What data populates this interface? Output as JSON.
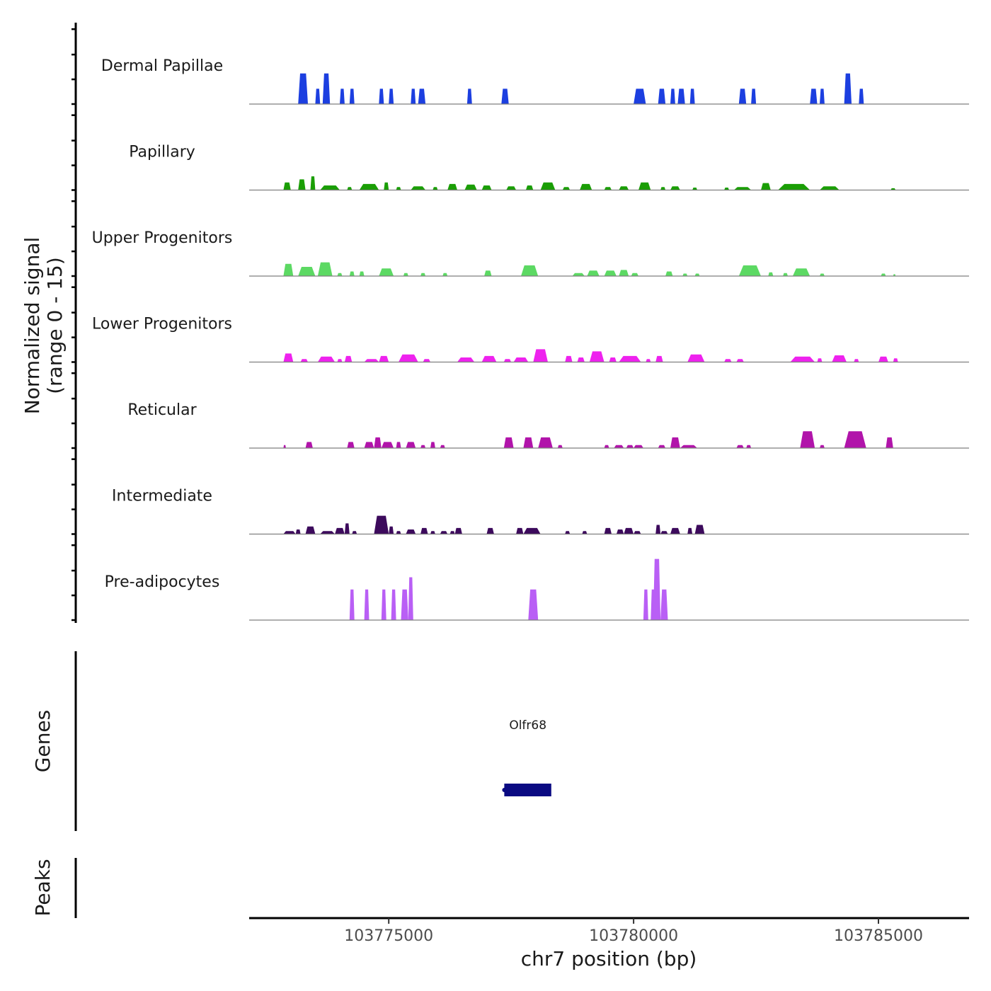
{
  "chart_data": {
    "type": "coverage",
    "y_axis_title_line1": "Normalized signal",
    "y_axis_title_line2": "(range 0 - 15)",
    "y_range": [
      0,
      15
    ],
    "x_axis_title": "chr7 position (bp)",
    "x_range": [
      103772150,
      103786850
    ],
    "x_ticks": [
      103775000,
      103780000,
      103785000
    ],
    "x_tick_labels": [
      "103775000",
      "103780000",
      "103785000"
    ],
    "tracks": [
      {
        "name": "Dermal Papillae",
        "color": "#1c3fe0",
        "peaks": [
          [
            103773150,
            103773350,
            10
          ],
          [
            103773500,
            103773600,
            5
          ],
          [
            103773650,
            103773800,
            10
          ],
          [
            103774000,
            103774100,
            5
          ],
          [
            103774200,
            103774300,
            5
          ],
          [
            103774800,
            103774900,
            5
          ],
          [
            103775000,
            103775100,
            5
          ],
          [
            103775450,
            103775550,
            5
          ],
          [
            103775600,
            103775750,
            5
          ],
          [
            103776600,
            103776700,
            5
          ],
          [
            103777300,
            103777450,
            5
          ],
          [
            103780000,
            103780250,
            5
          ],
          [
            103780500,
            103780650,
            5
          ],
          [
            103780750,
            103780850,
            5
          ],
          [
            103780900,
            103781050,
            5
          ],
          [
            103781150,
            103781250,
            5
          ],
          [
            103782150,
            103782300,
            5
          ],
          [
            103782400,
            103782500,
            5
          ],
          [
            103783600,
            103783750,
            5
          ],
          [
            103783800,
            103783900,
            5
          ],
          [
            103784300,
            103784450,
            10
          ],
          [
            103784600,
            103784700,
            5
          ]
        ]
      },
      {
        "name": "Papillary",
        "color": "#1a9e05",
        "peaks": [
          [
            103772850,
            103773000,
            2.5
          ],
          [
            103773150,
            103773300,
            3.5
          ],
          [
            103773400,
            103773500,
            4.5
          ],
          [
            103773600,
            103774000,
            1.5
          ],
          [
            103774150,
            103774250,
            1
          ],
          [
            103774400,
            103774800,
            2
          ],
          [
            103774900,
            103775000,
            2.5
          ],
          [
            103775150,
            103775250,
            1
          ],
          [
            103775450,
            103775750,
            1.2
          ],
          [
            103775900,
            103776000,
            1
          ],
          [
            103776200,
            103776400,
            2
          ],
          [
            103776550,
            103776800,
            1.8
          ],
          [
            103776900,
            103777100,
            1.5
          ],
          [
            103777400,
            103777600,
            1.2
          ],
          [
            103777800,
            103777950,
            1.5
          ],
          [
            103778100,
            103778400,
            2.5
          ],
          [
            103778550,
            103778700,
            1
          ],
          [
            103778900,
            103779150,
            2
          ],
          [
            103779400,
            103779550,
            1
          ],
          [
            103779700,
            103779900,
            1.2
          ],
          [
            103780100,
            103780350,
            2.5
          ],
          [
            103780550,
            103780650,
            1
          ],
          [
            103780750,
            103780950,
            1.2
          ],
          [
            103781200,
            103781300,
            0.8
          ],
          [
            103781850,
            103781950,
            0.8
          ],
          [
            103782050,
            103782400,
            1
          ],
          [
            103782600,
            103782800,
            2.3
          ],
          [
            103782950,
            103783600,
            2
          ],
          [
            103783800,
            103784200,
            1.2
          ],
          [
            103785250,
            103785350,
            0.6
          ]
        ]
      },
      {
        "name": "Upper Progenitors",
        "color": "#5cd963",
        "peaks": [
          [
            103772850,
            103773050,
            4
          ],
          [
            103773150,
            103773500,
            3
          ],
          [
            103773550,
            103773850,
            4.5
          ],
          [
            103773950,
            103774050,
            1
          ],
          [
            103774200,
            103774300,
            1.5
          ],
          [
            103774400,
            103774500,
            1.5
          ],
          [
            103774800,
            103775100,
            2.5
          ],
          [
            103775300,
            103775400,
            1
          ],
          [
            103775650,
            103775750,
            1
          ],
          [
            103776100,
            103776200,
            1
          ],
          [
            103776950,
            103777100,
            1.8
          ],
          [
            103777700,
            103778050,
            3.5
          ],
          [
            103778750,
            103779000,
            1
          ],
          [
            103779050,
            103779300,
            1.8
          ],
          [
            103779400,
            103779650,
            1.8
          ],
          [
            103779700,
            103779900,
            2
          ],
          [
            103779950,
            103780100,
            1
          ],
          [
            103780650,
            103780800,
            1.5
          ],
          [
            103781000,
            103781100,
            0.8
          ],
          [
            103781250,
            103781350,
            0.8
          ],
          [
            103782150,
            103782600,
            3.5
          ],
          [
            103782750,
            103782850,
            1.2
          ],
          [
            103783050,
            103783150,
            1
          ],
          [
            103783250,
            103783600,
            2.5
          ],
          [
            103783800,
            103783900,
            0.8
          ],
          [
            103785050,
            103785150,
            0.8
          ],
          [
            103785300,
            103785350,
            0.6
          ]
        ]
      },
      {
        "name": "Lower Progenitors",
        "color": "#ee22ee",
        "peaks": [
          [
            103772850,
            103773050,
            2.8
          ],
          [
            103773200,
            103773350,
            1
          ],
          [
            103773550,
            103773900,
            1.8
          ],
          [
            103773950,
            103774050,
            1
          ],
          [
            103774100,
            103774250,
            2
          ],
          [
            103774500,
            103774800,
            1
          ],
          [
            103774800,
            103775000,
            2
          ],
          [
            103775200,
            103775600,
            2.5
          ],
          [
            103775700,
            103775850,
            1
          ],
          [
            103776400,
            103776750,
            1.5
          ],
          [
            103776900,
            103777200,
            2
          ],
          [
            103777350,
            103777500,
            1
          ],
          [
            103777550,
            103777850,
            1.5
          ],
          [
            103777950,
            103778250,
            4.2
          ],
          [
            103778600,
            103778750,
            2
          ],
          [
            103778850,
            103779000,
            1.5
          ],
          [
            103779100,
            103779400,
            3.5
          ],
          [
            103779500,
            103779650,
            1.5
          ],
          [
            103779700,
            103780150,
            2
          ],
          [
            103780250,
            103780350,
            1
          ],
          [
            103780450,
            103780600,
            2
          ],
          [
            103781100,
            103781450,
            2.5
          ],
          [
            103781850,
            103782000,
            1
          ],
          [
            103782100,
            103782250,
            1
          ],
          [
            103783200,
            103783700,
            1.8
          ],
          [
            103783750,
            103783850,
            1.2
          ],
          [
            103784050,
            103784350,
            2.2
          ],
          [
            103784500,
            103784600,
            1
          ],
          [
            103785000,
            103785200,
            1.8
          ],
          [
            103785300,
            103785400,
            1.2
          ]
        ]
      },
      {
        "name": "Reticular",
        "color": "#b114aa",
        "peaks": [
          [
            103772850,
            103772900,
            1
          ],
          [
            103773300,
            103773450,
            2
          ],
          [
            103774150,
            103774300,
            2
          ],
          [
            103774500,
            103774700,
            2
          ],
          [
            103774700,
            103774850,
            3.5
          ],
          [
            103774850,
            103775100,
            2
          ],
          [
            103775150,
            103775250,
            2
          ],
          [
            103775350,
            103775550,
            2
          ],
          [
            103775650,
            103775750,
            1
          ],
          [
            103775850,
            103775950,
            2
          ],
          [
            103776050,
            103776150,
            1
          ],
          [
            103777350,
            103777550,
            3.5
          ],
          [
            103777750,
            103777950,
            3.5
          ],
          [
            103778050,
            103778350,
            3.5
          ],
          [
            103778450,
            103778550,
            1
          ],
          [
            103779400,
            103779500,
            1
          ],
          [
            103779600,
            103779800,
            1
          ],
          [
            103779850,
            103780000,
            1
          ],
          [
            103780000,
            103780200,
            1
          ],
          [
            103780500,
            103780650,
            1
          ],
          [
            103780750,
            103780950,
            3.5
          ],
          [
            103780950,
            103781300,
            1
          ],
          [
            103782100,
            103782250,
            1
          ],
          [
            103782300,
            103782400,
            1
          ],
          [
            103783400,
            103783700,
            5.5
          ],
          [
            103783800,
            103783900,
            1
          ],
          [
            103784300,
            103784750,
            5.5
          ],
          [
            103785150,
            103785300,
            3.5
          ]
        ]
      },
      {
        "name": "Intermediate",
        "color": "#3c0a5c",
        "peaks": [
          [
            103772850,
            103773100,
            1
          ],
          [
            103773100,
            103773200,
            1.5
          ],
          [
            103773300,
            103773500,
            2.5
          ],
          [
            103773600,
            103773900,
            1
          ],
          [
            103773900,
            103774100,
            2
          ],
          [
            103774100,
            103774200,
            3.5
          ],
          [
            103774250,
            103774350,
            1
          ],
          [
            103774700,
            103775000,
            6
          ],
          [
            103775000,
            103775100,
            2.5
          ],
          [
            103775150,
            103775250,
            1
          ],
          [
            103775350,
            103775550,
            1.5
          ],
          [
            103775650,
            103775800,
            2
          ],
          [
            103775850,
            103775950,
            1
          ],
          [
            103776050,
            103776200,
            1
          ],
          [
            103776250,
            103776350,
            1
          ],
          [
            103776350,
            103776500,
            2
          ],
          [
            103777000,
            103777150,
            2
          ],
          [
            103777600,
            103777750,
            2
          ],
          [
            103777750,
            103778100,
            2
          ],
          [
            103778600,
            103778700,
            1
          ],
          [
            103778950,
            103779050,
            1
          ],
          [
            103779400,
            103779550,
            2
          ],
          [
            103779650,
            103779800,
            1.5
          ],
          [
            103779800,
            103780000,
            2
          ],
          [
            103780000,
            103780150,
            1
          ],
          [
            103780450,
            103780550,
            3
          ],
          [
            103780550,
            103780700,
            1
          ],
          [
            103780750,
            103780950,
            2
          ],
          [
            103781100,
            103781200,
            2
          ],
          [
            103781250,
            103781450,
            3
          ]
        ]
      },
      {
        "name": "Pre-adipocytes",
        "color": "#b95ff5",
        "peaks": [
          [
            103774200,
            103774300,
            10
          ],
          [
            103774500,
            103774600,
            10
          ],
          [
            103774850,
            103774950,
            10
          ],
          [
            103775050,
            103775150,
            10
          ],
          [
            103775250,
            103775400,
            10
          ],
          [
            103775400,
            103775500,
            14
          ],
          [
            103777850,
            103778050,
            10
          ],
          [
            103780200,
            103780300,
            10
          ],
          [
            103780350,
            103780450,
            10
          ],
          [
            103780400,
            103780550,
            20
          ],
          [
            103780550,
            103780700,
            10
          ]
        ]
      }
    ],
    "genes_track_title": "Genes",
    "genes": [
      {
        "name": "Olfr68",
        "start": 103777360,
        "end": 103778320,
        "color": "#0a0a82"
      }
    ],
    "peaks_track_title": "Peaks",
    "peak_regions": []
  }
}
